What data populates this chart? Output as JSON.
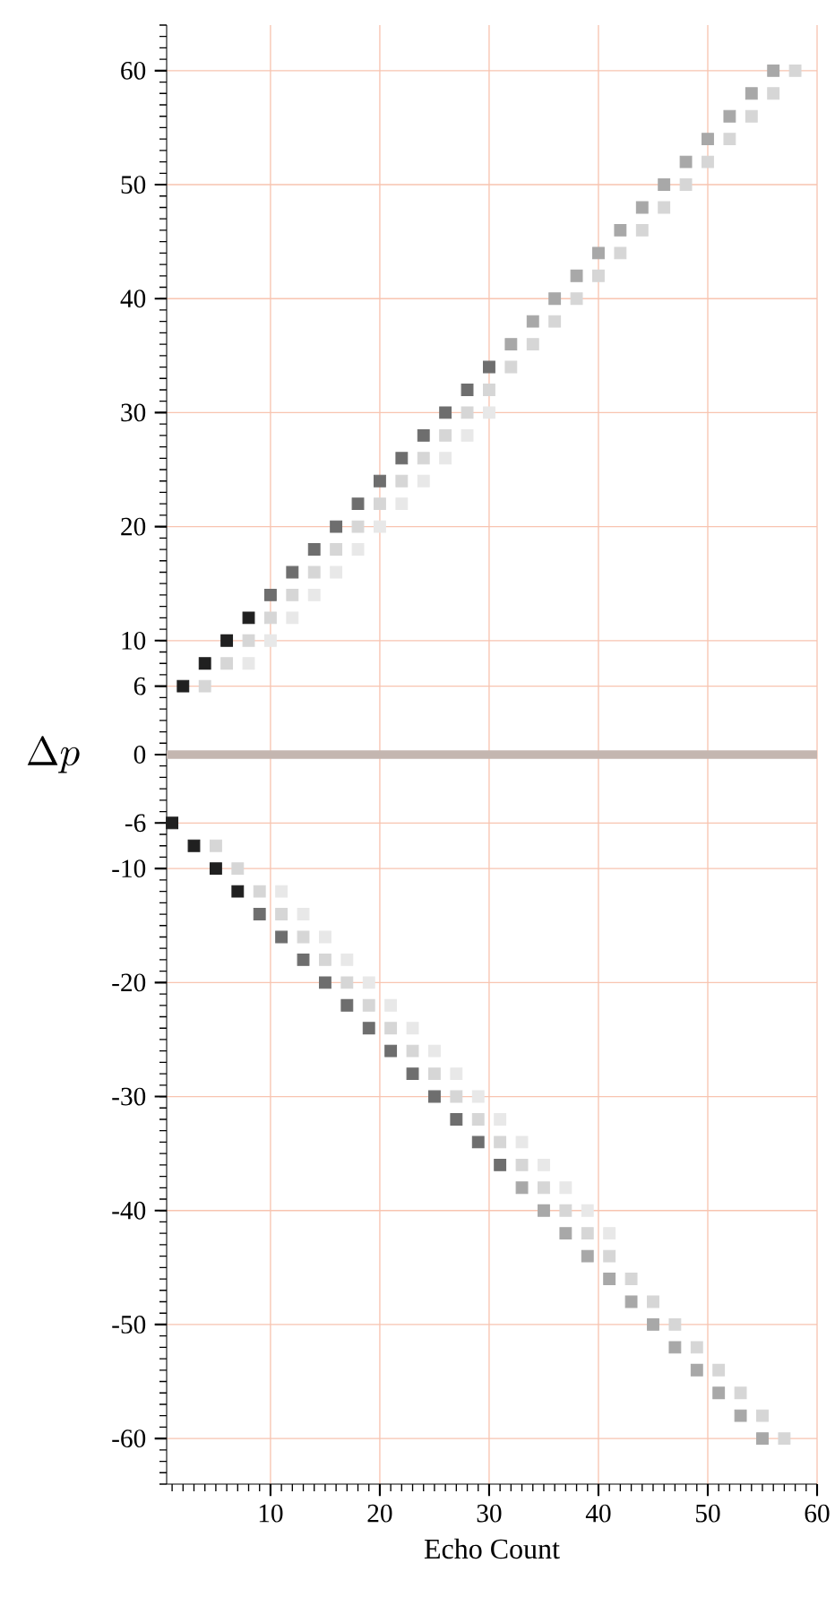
{
  "chart_data": {
    "type": "scatter",
    "xlabel": "Echo Count",
    "ylabel": "\\Delta p",
    "marker": "square",
    "grid": true,
    "xlim": [
      0.5,
      60
    ],
    "ylim": [
      -64,
      64
    ],
    "xticks": [
      10,
      20,
      30,
      40,
      50,
      60
    ],
    "yticks": [
      -60,
      -50,
      -40,
      -30,
      -20,
      -10,
      -6,
      0,
      6,
      10,
      20,
      30,
      40,
      50,
      60
    ],
    "ref_lines": [
      {
        "axis": "y",
        "value": 0,
        "color": "#c4b6b0"
      }
    ],
    "series": [
      {
        "color": "#202020",
        "x": [
          2,
          4,
          6,
          8,
          1,
          3,
          5,
          7
        ],
        "values": [
          6,
          8,
          10,
          12,
          -6,
          -8,
          -10,
          -12
        ]
      },
      {
        "color": "#6e6e6e",
        "x": [
          10,
          12,
          14,
          16,
          18,
          20,
          22,
          24,
          26,
          28,
          30,
          9,
          11,
          13,
          15,
          17,
          19,
          21,
          23,
          25,
          27,
          29,
          31
        ],
        "values": [
          14,
          16,
          18,
          20,
          22,
          24,
          26,
          28,
          30,
          32,
          34,
          -14,
          -16,
          -18,
          -20,
          -22,
          -24,
          -26,
          -28,
          -30,
          -32,
          -34,
          -36
        ]
      },
      {
        "color": "#a8a8a8",
        "x": [
          32,
          34,
          36,
          38,
          40,
          42,
          44,
          46,
          48,
          50,
          52,
          54,
          56,
          33,
          35,
          37,
          39,
          41,
          43,
          45,
          47,
          49,
          51,
          53,
          55
        ],
        "values": [
          36,
          38,
          40,
          42,
          44,
          46,
          48,
          50,
          52,
          54,
          56,
          58,
          60,
          -38,
          -40,
          -42,
          -44,
          -46,
          -48,
          -50,
          -52,
          -54,
          -56,
          -58,
          -60
        ]
      },
      {
        "color": "#d6d6d6",
        "x": [
          4,
          6,
          8,
          10,
          12,
          14,
          16,
          18,
          20,
          22,
          24,
          26,
          28,
          30,
          32,
          34,
          36,
          38,
          40,
          42,
          44,
          46,
          48,
          50,
          52,
          54,
          56,
          58,
          5,
          7,
          9,
          11,
          13,
          15,
          17,
          19,
          21,
          23,
          25,
          27,
          29,
          31,
          33,
          35,
          37,
          39,
          41,
          43,
          45,
          47,
          49,
          51,
          53,
          55,
          57
        ],
        "values": [
          6,
          8,
          10,
          12,
          14,
          16,
          18,
          20,
          22,
          24,
          26,
          28,
          30,
          32,
          34,
          36,
          38,
          40,
          42,
          44,
          46,
          48,
          50,
          52,
          54,
          56,
          58,
          60,
          -8,
          -10,
          -12,
          -14,
          -16,
          -18,
          -20,
          -22,
          -24,
          -26,
          -28,
          -30,
          -32,
          -34,
          -36,
          -38,
          -40,
          -42,
          -44,
          -46,
          -48,
          -50,
          -52,
          -54,
          -56,
          -58,
          -60
        ]
      },
      {
        "color": "#e8e8e8",
        "x": [
          8,
          10,
          12,
          14,
          16,
          18,
          20,
          22,
          24,
          26,
          28,
          30,
          11,
          13,
          15,
          17,
          19,
          21,
          23,
          25,
          27,
          29,
          31,
          33,
          35,
          37,
          39,
          41
        ],
        "values": [
          8,
          10,
          12,
          14,
          16,
          18,
          20,
          22,
          24,
          26,
          28,
          30,
          -12,
          -14,
          -16,
          -18,
          -20,
          -22,
          -24,
          -26,
          -28,
          -30,
          -32,
          -34,
          -36,
          -38,
          -40,
          -42
        ]
      }
    ]
  }
}
